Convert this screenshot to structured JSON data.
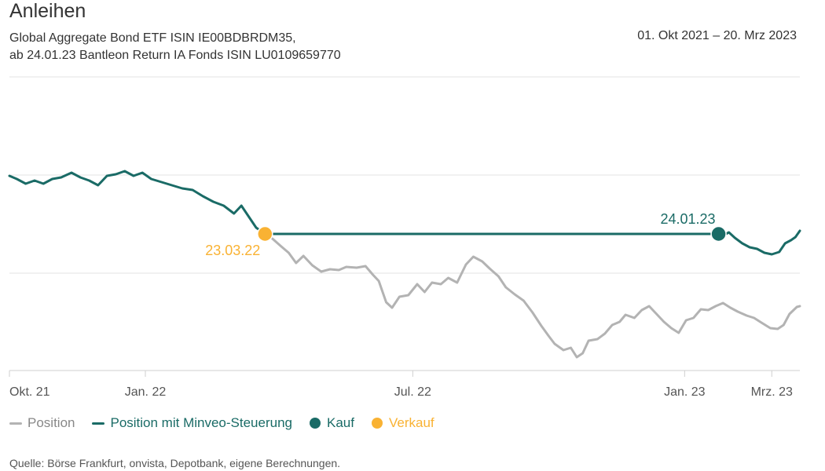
{
  "header": {
    "title": "Anleihen",
    "subtitle_line1": "Global Aggregate Bond ETF ISIN IE00BDBRDM35,",
    "subtitle_line2": "ab 24.01.23 Bantleon Return IA Fonds ISIN LU0109659770",
    "date_range": "01. Okt 2021 – 20. Mrz 2023"
  },
  "chart_data": {
    "type": "line",
    "x_ticks": [
      "Okt. 21",
      "Jan. 22",
      "Jul. 22",
      "Jan. 23",
      "Mrz. 23"
    ],
    "x_tick_dates": [
      "2021-10-01",
      "2022-01-01",
      "2022-07-01",
      "2023-01-01",
      "2023-03-01"
    ],
    "x_range": [
      "2021-10-01",
      "2023-03-20"
    ],
    "y_axis_labels": false,
    "grid": "horizontal",
    "legend_position": "bottom-left",
    "colors": {
      "position": "#b3b3b3",
      "steuerung": "#1a6b66",
      "kauf": "#1a6b66",
      "verkauf": "#f9b233"
    },
    "series": [
      {
        "name": "Position",
        "points": [
          [
            "2022-03-23",
            298
          ],
          [
            "2022-03-28",
            304
          ],
          [
            "2022-04-03",
            314
          ],
          [
            "2022-04-08",
            322
          ],
          [
            "2022-04-13",
            335
          ],
          [
            "2022-04-18",
            326
          ],
          [
            "2022-04-24",
            338
          ],
          [
            "2022-04-30",
            346
          ],
          [
            "2022-05-06",
            343
          ],
          [
            "2022-05-12",
            344
          ],
          [
            "2022-05-17",
            340
          ],
          [
            "2022-05-24",
            341
          ],
          [
            "2022-05-30",
            339
          ],
          [
            "2022-06-04",
            350
          ],
          [
            "2022-06-08",
            358
          ],
          [
            "2022-06-13",
            385
          ],
          [
            "2022-06-17",
            392
          ],
          [
            "2022-06-22",
            378
          ],
          [
            "2022-06-28",
            376
          ],
          [
            "2022-07-04",
            362
          ],
          [
            "2022-07-09",
            372
          ],
          [
            "2022-07-14",
            360
          ],
          [
            "2022-07-20",
            362
          ],
          [
            "2022-07-25",
            354
          ],
          [
            "2022-07-31",
            360
          ],
          [
            "2022-08-06",
            337
          ],
          [
            "2022-08-11",
            327
          ],
          [
            "2022-08-17",
            333
          ],
          [
            "2022-08-22",
            342
          ],
          [
            "2022-08-28",
            352
          ],
          [
            "2022-09-02",
            366
          ],
          [
            "2022-09-08",
            375
          ],
          [
            "2022-09-14",
            383
          ],
          [
            "2022-09-20",
            398
          ],
          [
            "2022-09-26",
            415
          ],
          [
            "2022-10-01",
            428
          ],
          [
            "2022-10-05",
            438
          ],
          [
            "2022-10-11",
            446
          ],
          [
            "2022-10-16",
            443
          ],
          [
            "2022-10-20",
            455
          ],
          [
            "2022-10-24",
            450
          ],
          [
            "2022-10-28",
            434
          ],
          [
            "2022-11-03",
            432
          ],
          [
            "2022-11-08",
            425
          ],
          [
            "2022-11-13",
            414
          ],
          [
            "2022-11-18",
            410
          ],
          [
            "2022-11-22",
            401
          ],
          [
            "2022-11-28",
            405
          ],
          [
            "2022-12-03",
            395
          ],
          [
            "2022-12-08",
            390
          ],
          [
            "2022-12-13",
            400
          ],
          [
            "2022-12-18",
            410
          ],
          [
            "2022-12-23",
            418
          ],
          [
            "2022-12-28",
            424
          ],
          [
            "2023-01-02",
            408
          ],
          [
            "2023-01-07",
            405
          ],
          [
            "2023-01-12",
            394
          ],
          [
            "2023-01-17",
            395
          ],
          [
            "2023-01-22",
            390
          ],
          [
            "2023-01-27",
            386
          ],
          [
            "2023-02-01",
            392
          ],
          [
            "2023-02-06",
            397
          ],
          [
            "2023-02-12",
            402
          ],
          [
            "2023-02-17",
            405
          ],
          [
            "2023-02-22",
            411
          ],
          [
            "2023-02-28",
            418
          ],
          [
            "2023-03-05",
            419
          ],
          [
            "2023-03-09",
            414
          ],
          [
            "2023-03-13",
            400
          ],
          [
            "2023-03-18",
            391
          ],
          [
            "2023-03-20",
            390
          ]
        ]
      },
      {
        "name": "Position mit Minveo-Steuerung",
        "points": [
          [
            "2021-10-01",
            224
          ],
          [
            "2021-10-06",
            228
          ],
          [
            "2021-10-12",
            234
          ],
          [
            "2021-10-18",
            230
          ],
          [
            "2021-10-24",
            234
          ],
          [
            "2021-10-30",
            228
          ],
          [
            "2021-11-05",
            226
          ],
          [
            "2021-11-12",
            220
          ],
          [
            "2021-11-18",
            226
          ],
          [
            "2021-11-24",
            230
          ],
          [
            "2021-11-30",
            236
          ],
          [
            "2021-12-06",
            224
          ],
          [
            "2021-12-12",
            222
          ],
          [
            "2021-12-18",
            218
          ],
          [
            "2021-12-24",
            224
          ],
          [
            "2021-12-30",
            220
          ],
          [
            "2022-01-05",
            228
          ],
          [
            "2022-01-12",
            232
          ],
          [
            "2022-01-19",
            236
          ],
          [
            "2022-01-26",
            240
          ],
          [
            "2022-02-02",
            242
          ],
          [
            "2022-02-09",
            250
          ],
          [
            "2022-02-16",
            257
          ],
          [
            "2022-02-23",
            262
          ],
          [
            "2022-03-02",
            272
          ],
          [
            "2022-03-07",
            262
          ],
          [
            "2022-03-12",
            276
          ],
          [
            "2022-03-17",
            290
          ],
          [
            "2022-03-23",
            298
          ],
          [
            "2022-04-05",
            298
          ],
          [
            "2022-06-01",
            298
          ],
          [
            "2022-08-01",
            298
          ],
          [
            "2022-10-01",
            298
          ],
          [
            "2022-12-01",
            298
          ],
          [
            "2023-01-24",
            298
          ],
          [
            "2023-01-27",
            300
          ],
          [
            "2023-01-31",
            296
          ],
          [
            "2023-02-04",
            303
          ],
          [
            "2023-02-09",
            310
          ],
          [
            "2023-02-14",
            315
          ],
          [
            "2023-02-19",
            317
          ],
          [
            "2023-02-24",
            322
          ],
          [
            "2023-03-01",
            324
          ],
          [
            "2023-03-06",
            321
          ],
          [
            "2023-03-10",
            310
          ],
          [
            "2023-03-14",
            306
          ],
          [
            "2023-03-17",
            302
          ],
          [
            "2023-03-20",
            294
          ]
        ]
      }
    ],
    "markers": [
      {
        "name": "Verkauf",
        "date": "2022-03-23",
        "label": "23.03.22"
      },
      {
        "name": "Kauf",
        "date": "2023-01-24",
        "label": "24.01.23"
      }
    ]
  },
  "legend": {
    "position": "Position",
    "steuerung": "Position mit Minveo-Steuerung",
    "kauf": "Kauf",
    "verkauf": "Verkauf"
  },
  "footer": {
    "source": "Quelle: Börse Frankfurt, onvista, Depotbank, eigene Berechnungen."
  }
}
